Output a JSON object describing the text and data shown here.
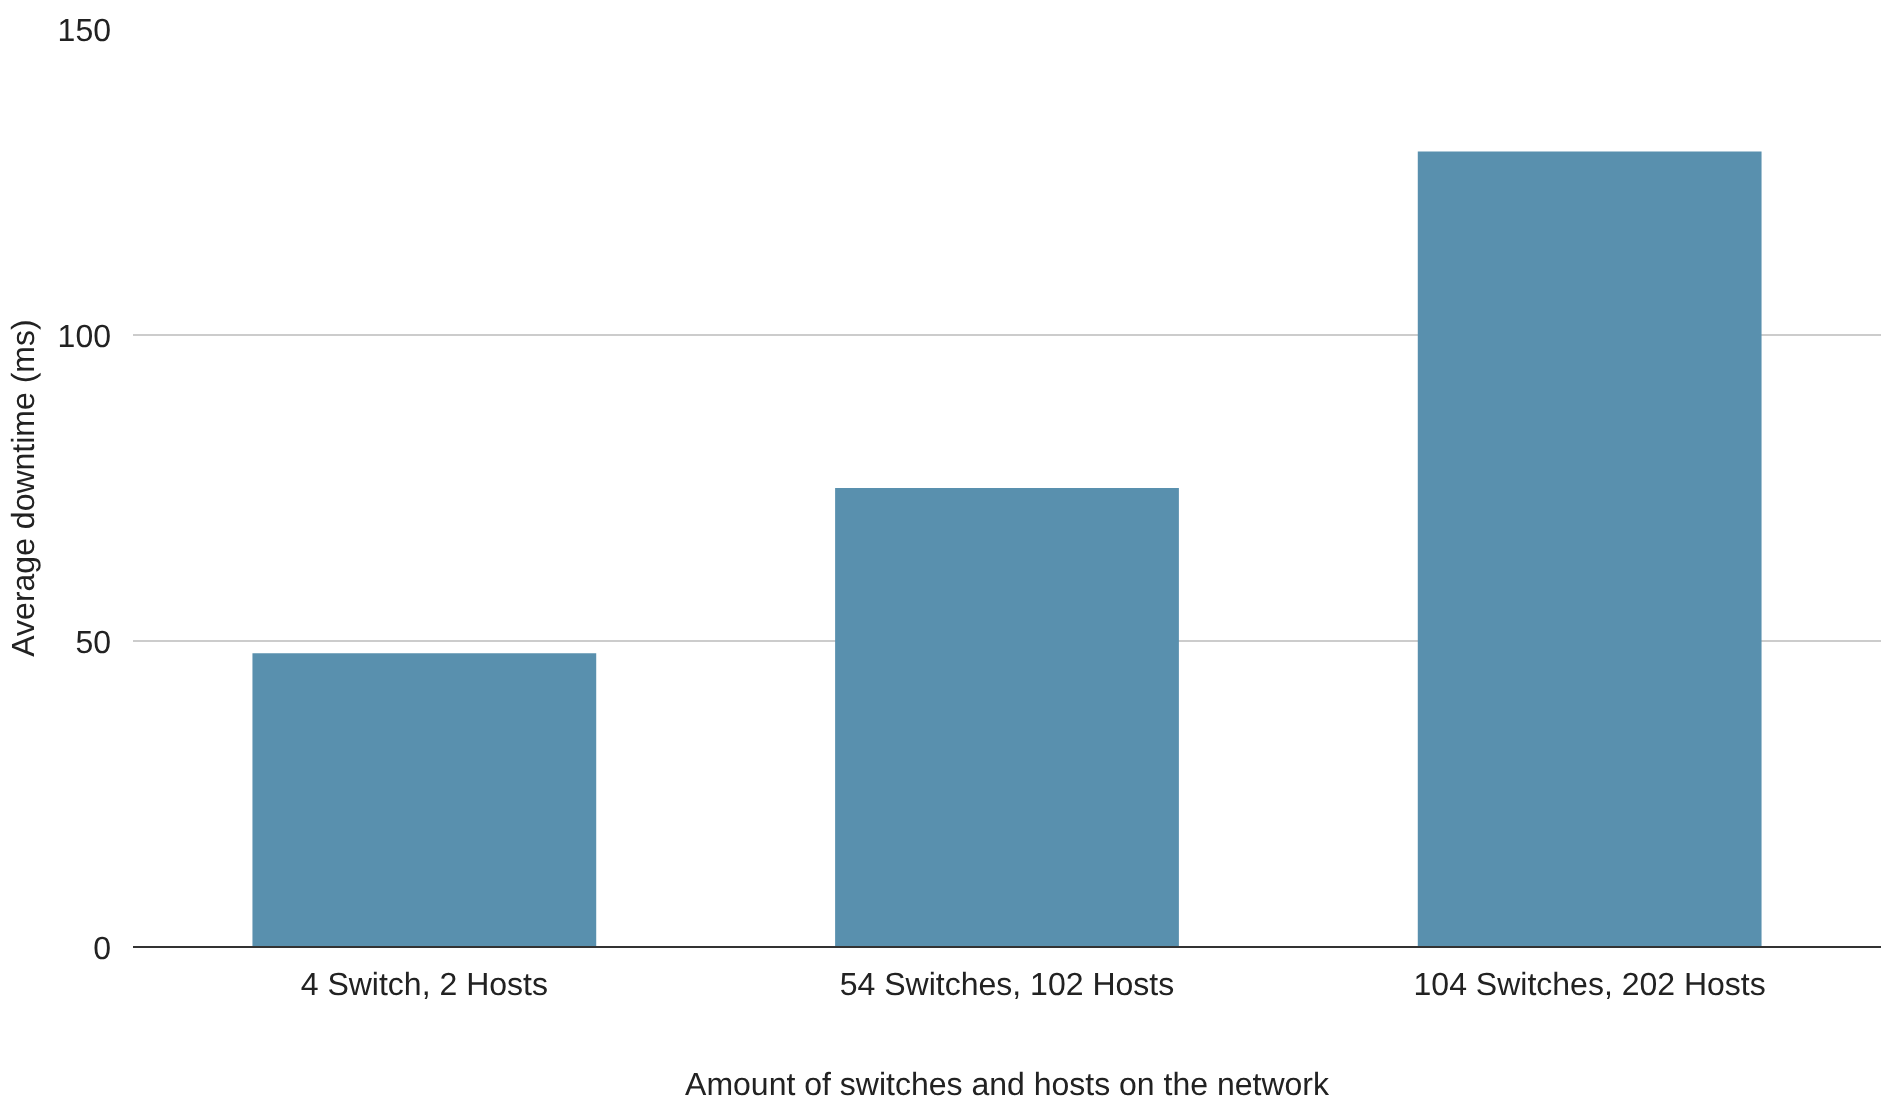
{
  "chart_data": {
    "type": "bar",
    "xlabel": "Amount of switches and hosts on the network",
    "ylabel": "Average downtime (ms)",
    "categories": [
      "4 Switch, 2 Hosts",
      "54 Switches, 102 Hosts",
      "104 Switches, 202 Hosts"
    ],
    "values": [
      48,
      75,
      130
    ],
    "color": "#5990ae",
    "ylim": [
      0,
      150
    ],
    "yticks": [
      0,
      50,
      100,
      150
    ],
    "grid": "y"
  }
}
